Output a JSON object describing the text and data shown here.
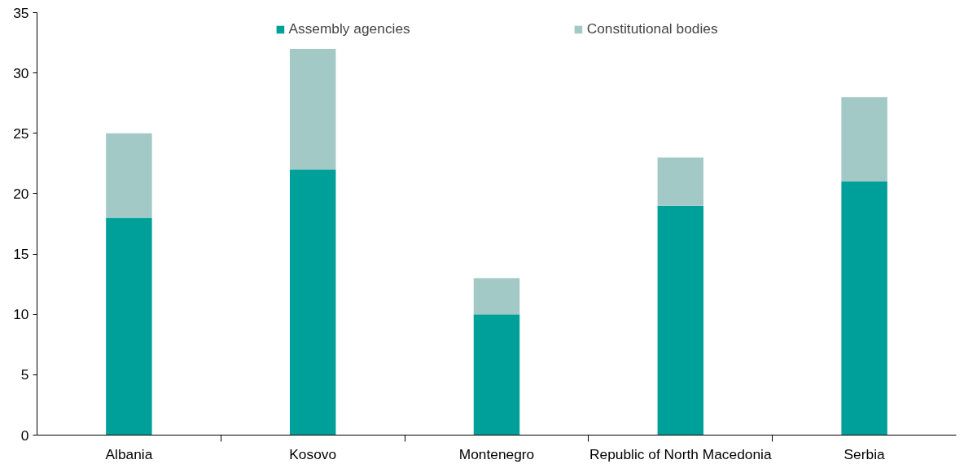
{
  "chart_data": {
    "type": "bar",
    "stacked": true,
    "categories": [
      "Albania",
      "Kosovo",
      "Montenegro",
      "Republic of North Macedonia",
      "Serbia"
    ],
    "series": [
      {
        "name": "Assembly agencies",
        "color": "#00a09a",
        "values": [
          18,
          22,
          10,
          19,
          21
        ]
      },
      {
        "name": "Constitutional bodies",
        "color": "#a2c9c6",
        "values": [
          7,
          10,
          3,
          4,
          7
        ]
      }
    ],
    "ylim": [
      0,
      35
    ],
    "yticks": [
      0,
      5,
      10,
      15,
      20,
      25,
      30,
      35
    ],
    "grid": false,
    "legend": "top"
  }
}
